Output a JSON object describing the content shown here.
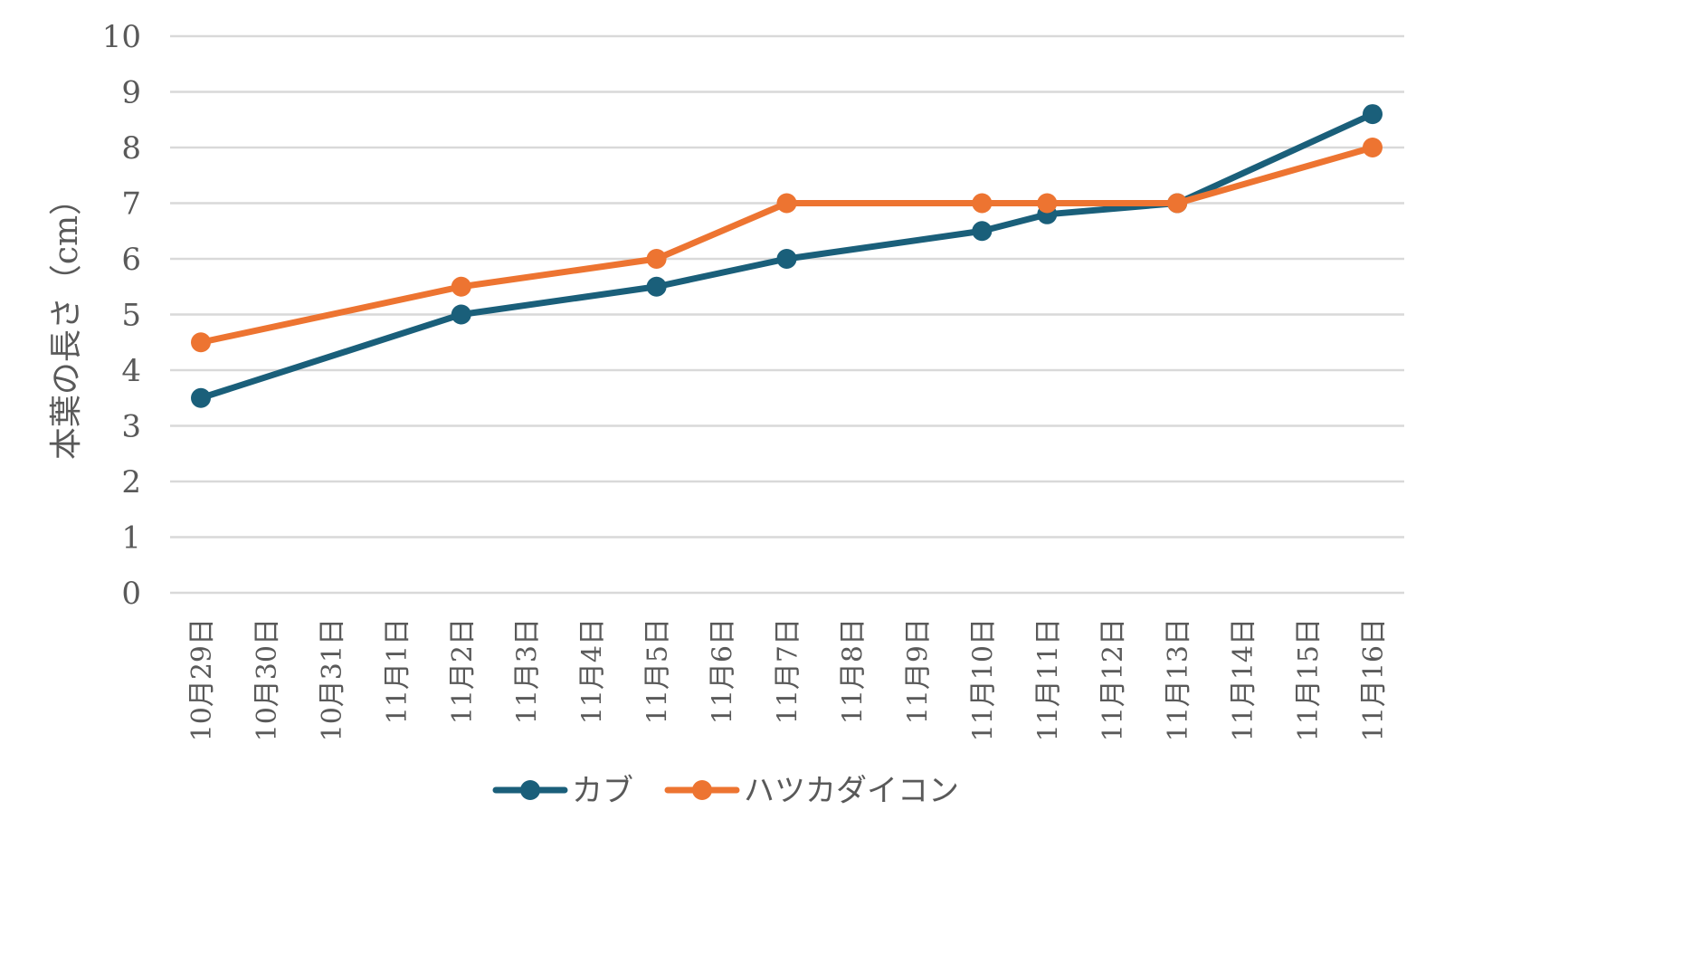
{
  "chart_data": {
    "type": "line",
    "title": "",
    "xlabel": "",
    "ylabel": "本葉の長さ（cm）",
    "ylim": [
      0,
      10
    ],
    "y_ticks": [
      "0",
      "1",
      "2",
      "3",
      "4",
      "5",
      "6",
      "7",
      "8",
      "9",
      "10"
    ],
    "grid": true,
    "legend_position": "bottom",
    "categories": [
      "10月29日",
      "10月30日",
      "10月31日",
      "11月1日",
      "11月2日",
      "11月3日",
      "11月4日",
      "11月5日",
      "11月6日",
      "11月7日",
      "11月8日",
      "11月9日",
      "11月10日",
      "11月11日",
      "11月12日",
      "11月13日",
      "11月14日",
      "11月15日",
      "11月16日"
    ],
    "series": [
      {
        "name": "カブ",
        "color": "#1a5f7a",
        "values": [
          3.5,
          null,
          null,
          null,
          5.0,
          null,
          null,
          5.5,
          null,
          6.0,
          null,
          null,
          6.5,
          6.8,
          null,
          7.0,
          null,
          null,
          8.6
        ]
      },
      {
        "name": "ハツカダイコン",
        "color": "#ed7431",
        "values": [
          4.5,
          null,
          null,
          null,
          5.5,
          null,
          null,
          6.0,
          null,
          7.0,
          null,
          null,
          7.0,
          7.0,
          null,
          7.0,
          null,
          null,
          8.0
        ]
      }
    ]
  }
}
